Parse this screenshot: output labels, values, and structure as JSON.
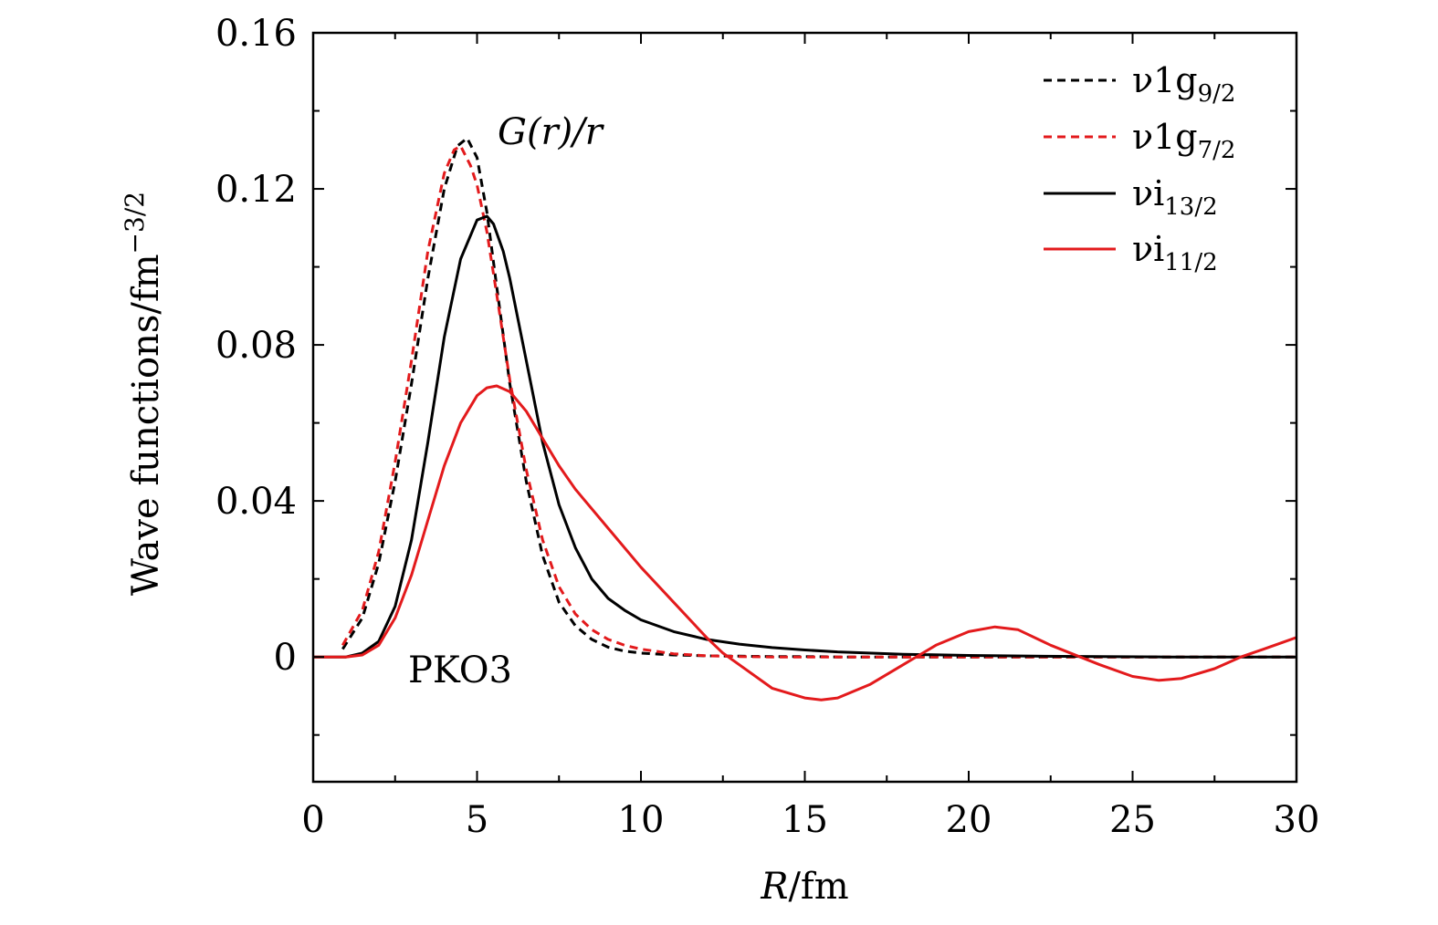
{
  "chart_data": {
    "type": "line",
    "xlabel_var": "R",
    "xlabel_unit": "/fm",
    "ylabel": "Wave functions/fm",
    "ylabel_exp": "−3/2",
    "xlim": [
      0,
      30
    ],
    "ylim": [
      -0.032,
      0.16
    ],
    "x_ticks": [
      0,
      5,
      10,
      15,
      20,
      25,
      30
    ],
    "x_tick_labels": [
      "0",
      "5",
      "10",
      "15",
      "20",
      "25",
      "30"
    ],
    "y_ticks": [
      0,
      0.04,
      0.08,
      0.12,
      0.16
    ],
    "y_tick_labels": [
      "0",
      "0.04",
      "0.08",
      "0.12",
      "0.16"
    ],
    "x_minor_step": 2.5,
    "y_minor_step": 0.02,
    "grid": false,
    "legend_position": "top-right",
    "annotations": {
      "curve_label": "G(r)/r",
      "model_label": "PKO3"
    },
    "series": [
      {
        "name": "ν1g9/2",
        "legend_main": "ν1g",
        "legend_sub": "9/2",
        "color": "#000000",
        "dash": true,
        "x": [
          0.9,
          1.5,
          2.0,
          2.5,
          3.0,
          3.5,
          4.0,
          4.4,
          4.7,
          5.0,
          5.3,
          5.6,
          6.0,
          6.5,
          7.0,
          7.5,
          8.0,
          8.5,
          9.0,
          9.5,
          10,
          11,
          12,
          13,
          14,
          15,
          16,
          18,
          20,
          22,
          24,
          26,
          28,
          30
        ],
        "y": [
          0.002,
          0.01,
          0.024,
          0.045,
          0.07,
          0.097,
          0.12,
          0.131,
          0.133,
          0.128,
          0.114,
          0.095,
          0.07,
          0.045,
          0.026,
          0.014,
          0.008,
          0.0045,
          0.0025,
          0.0015,
          0.001,
          0.0005,
          0.0003,
          0.0002,
          0.0001,
          0.0001,
          0.0,
          0.0,
          0.0,
          0.0,
          0.0,
          0.0,
          0.0,
          0.0
        ]
      },
      {
        "name": "ν1g7/2",
        "legend_main": "ν1g",
        "legend_sub": "7/2",
        "color": "#e31a1c",
        "dash": true,
        "x": [
          0.9,
          1.5,
          2.0,
          2.5,
          3.0,
          3.5,
          4.0,
          4.3,
          4.5,
          4.8,
          5.0,
          5.3,
          5.6,
          6.0,
          6.5,
          7.0,
          7.5,
          8.0,
          8.5,
          9.0,
          9.5,
          10,
          11,
          12,
          13,
          14,
          15,
          16,
          18,
          20,
          22,
          24,
          26,
          28,
          30
        ],
        "y": [
          0.003,
          0.012,
          0.027,
          0.05,
          0.076,
          0.104,
          0.124,
          0.13,
          0.131,
          0.126,
          0.121,
          0.109,
          0.093,
          0.071,
          0.048,
          0.03,
          0.018,
          0.011,
          0.007,
          0.0045,
          0.003,
          0.002,
          0.0008,
          0.0003,
          0.0001,
          0.0,
          0.0,
          0.0,
          0.0,
          0.0,
          0.0,
          0.0,
          0.0,
          0.0,
          0.0
        ]
      },
      {
        "name": "νi13/2",
        "legend_main": "νi",
        "legend_sub": "13/2",
        "color": "#000000",
        "dash": false,
        "x": [
          0,
          0.5,
          1.0,
          1.5,
          2.0,
          2.5,
          3.0,
          3.5,
          4.0,
          4.5,
          5.0,
          5.3,
          5.5,
          5.8,
          6.0,
          6.5,
          7.0,
          7.5,
          8.0,
          8.5,
          9.0,
          9.5,
          10,
          11,
          12,
          13,
          14,
          15,
          16,
          18,
          20,
          22,
          24,
          26,
          28,
          30
        ],
        "y": [
          0.0,
          0.0,
          0.0,
          0.001,
          0.004,
          0.013,
          0.03,
          0.055,
          0.082,
          0.102,
          0.112,
          0.113,
          0.111,
          0.104,
          0.097,
          0.076,
          0.055,
          0.039,
          0.028,
          0.02,
          0.015,
          0.012,
          0.0095,
          0.0065,
          0.0045,
          0.0033,
          0.0024,
          0.0018,
          0.0013,
          0.0007,
          0.0004,
          0.0002,
          0.0001,
          0.0,
          0.0,
          0.0
        ]
      },
      {
        "name": "νi11/2",
        "legend_main": "νi",
        "legend_sub": "11/2",
        "color": "#e31a1c",
        "dash": false,
        "x": [
          0,
          0.5,
          1.0,
          1.5,
          2.0,
          2.5,
          3.0,
          3.5,
          4.0,
          4.5,
          5.0,
          5.3,
          5.6,
          6.0,
          6.5,
          7.0,
          7.5,
          8.0,
          9.0,
          10,
          11,
          12,
          12.5,
          13,
          14,
          15,
          15.5,
          16,
          17,
          18,
          18.5,
          19,
          20,
          20.8,
          21.5,
          22.5,
          23.4,
          24,
          25,
          25.8,
          26.5,
          27.5,
          28.3,
          29,
          30
        ],
        "y": [
          0.0,
          0.0,
          0.0,
          0.0005,
          0.003,
          0.01,
          0.021,
          0.035,
          0.049,
          0.06,
          0.067,
          0.069,
          0.0695,
          0.068,
          0.063,
          0.056,
          0.049,
          0.043,
          0.033,
          0.023,
          0.014,
          0.005,
          0.001,
          -0.002,
          -0.008,
          -0.0105,
          -0.011,
          -0.0105,
          -0.007,
          -0.002,
          0.0005,
          0.003,
          0.0065,
          0.0077,
          0.007,
          0.003,
          0.0,
          -0.002,
          -0.005,
          -0.006,
          -0.0055,
          -0.003,
          0.0,
          0.002,
          0.005
        ]
      }
    ]
  }
}
